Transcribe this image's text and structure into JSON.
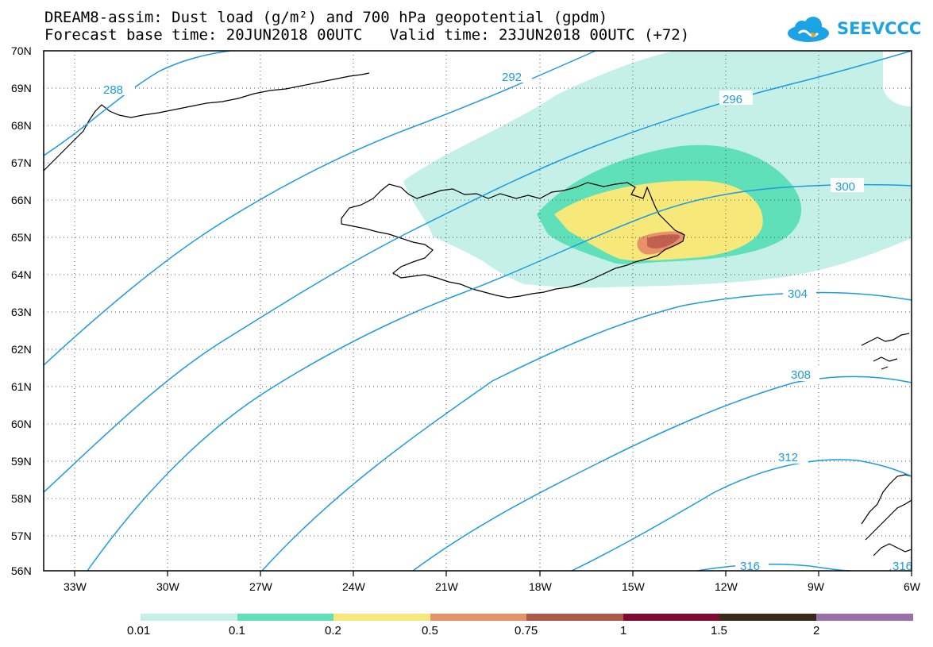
{
  "header": {
    "title_line1": "DREAM8-assim: Dust load (g/m²) and 700 hPa geopotential (gpdm)",
    "title_line2": "Forecast base time: 20JUN2018 00UTC   Valid time: 23JUN2018 00UTC (+72)"
  },
  "logo": {
    "text": "SEEVCCC",
    "color": "#1ca3e6"
  },
  "map": {
    "lat_labels": [
      "70N",
      "69N",
      "68N",
      "67N",
      "66N",
      "65N",
      "64N",
      "63N",
      "62N",
      "61N",
      "60N",
      "59N",
      "58N",
      "57N",
      "56N"
    ],
    "lon_labels": [
      "33W",
      "30W",
      "27W",
      "24W",
      "21W",
      "18W",
      "15W",
      "12W",
      "9W",
      "6W"
    ],
    "contour_labels": [
      "288",
      "292",
      "296",
      "300",
      "304",
      "308",
      "312",
      "316",
      "316"
    ],
    "contour_color": "#1e9be0",
    "coast_color": "#000000"
  },
  "colorbar": {
    "colors": [
      "#c4f0e8",
      "#5fe0b8",
      "#f7e87a",
      "#e8926a",
      "#b05848",
      "#800a30",
      "#3a2818",
      "#9a70a8"
    ],
    "labels": [
      "0.01",
      "0.1",
      "0.2",
      "0.5",
      "0.75",
      "1",
      "1.5",
      "2"
    ]
  }
}
